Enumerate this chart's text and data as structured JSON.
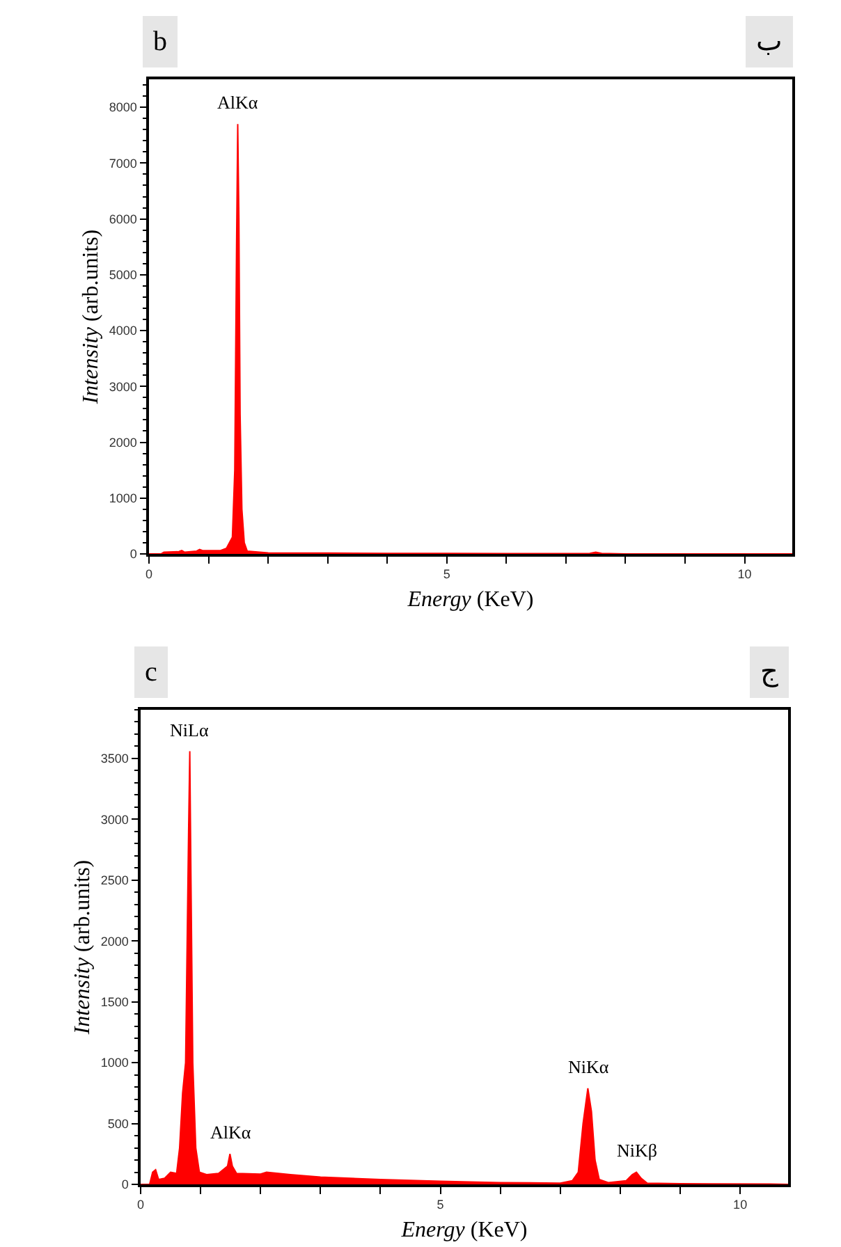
{
  "chart_data": [
    {
      "type": "area",
      "xlabel": "Energy (KeV)",
      "ylabel": "Intensity (arb.units)",
      "xlim": [
        0,
        10.8
      ],
      "ylim": [
        0,
        8500
      ],
      "xticks": [
        0,
        {
          "value": 1,
          "label": null
        },
        {
          "value": 2,
          "label": null
        },
        {
          "value": 3,
          "label": null
        },
        {
          "value": 4,
          "label": null
        },
        5,
        {
          "value": 6,
          "label": null
        },
        {
          "value": 7,
          "label": null
        },
        {
          "value": 8,
          "label": null
        },
        {
          "value": 9,
          "label": null
        },
        10
      ],
      "yticks": [
        0,
        1000,
        2000,
        3000,
        4000,
        5000,
        6000,
        7000,
        8000
      ],
      "annotations": [
        "b",
        "ب",
        {
          "text": "AlKα",
          "x": 1.49,
          "y": 7700
        }
      ],
      "series": [
        {
          "color": "#ff0000",
          "x": [
            0,
            0.2,
            0.25,
            0.5,
            0.55,
            0.6,
            0.8,
            0.85,
            0.9,
            1.2,
            1.3,
            1.4,
            1.44,
            1.47,
            1.49,
            1.51,
            1.53,
            1.56,
            1.6,
            1.65,
            2,
            3,
            4,
            5,
            6,
            7.4,
            7.5,
            7.6,
            8,
            10.8
          ],
          "values": [
            0,
            0,
            30,
            40,
            60,
            30,
            50,
            80,
            60,
            60,
            100,
            300,
            1500,
            5500,
            7700,
            6000,
            2500,
            800,
            200,
            50,
            20,
            15,
            10,
            10,
            5,
            10,
            30,
            10,
            0,
            0
          ]
        }
      ]
    },
    {
      "type": "area",
      "xlabel": "Energy (KeV)",
      "ylabel": "Intensity (arb.units)",
      "xlim": [
        0,
        10.8
      ],
      "ylim": [
        0,
        3900
      ],
      "xticks": [
        0,
        {
          "value": 1,
          "label": null
        },
        {
          "value": 2,
          "label": null
        },
        {
          "value": 3,
          "label": null
        },
        {
          "value": 4,
          "label": null
        },
        5,
        {
          "value": 6,
          "label": null
        },
        {
          "value": 7,
          "label": null
        },
        {
          "value": 8,
          "label": null
        },
        {
          "value": 9,
          "label": null
        },
        10
      ],
      "yticks": [
        0,
        500,
        1000,
        1500,
        2000,
        2500,
        3000,
        3500
      ],
      "annotations": [
        "c",
        "ج",
        {
          "text": "NiLα",
          "x": 0.82,
          "y": 3560
        },
        {
          "text": "AlKα",
          "x": 1.49,
          "y": 250
        },
        {
          "text": "NiKα",
          "x": 7.46,
          "y": 790
        },
        {
          "text": "NiKβ",
          "x": 8.27,
          "y": 100
        }
      ],
      "series": [
        {
          "color": "#ff0000",
          "x": [
            0,
            0.15,
            0.2,
            0.25,
            0.3,
            0.4,
            0.5,
            0.6,
            0.65,
            0.7,
            0.75,
            0.8,
            0.82,
            0.84,
            0.87,
            0.92,
            0.98,
            1.1,
            1.3,
            1.45,
            1.49,
            1.53,
            1.6,
            2,
            2.1,
            2.5,
            3,
            4,
            5,
            6,
            7,
            7.2,
            7.3,
            7.38,
            7.46,
            7.52,
            7.58,
            7.65,
            7.8,
            8.1,
            8.2,
            8.27,
            8.35,
            8.45,
            9,
            10.5,
            10.8
          ],
          "values": [
            0,
            0,
            100,
            120,
            40,
            50,
            100,
            90,
            300,
            750,
            1000,
            2900,
            3560,
            2500,
            1000,
            300,
            100,
            80,
            90,
            150,
            250,
            150,
            90,
            85,
            100,
            80,
            60,
            40,
            25,
            15,
            10,
            30,
            100,
            500,
            790,
            600,
            200,
            40,
            15,
            30,
            80,
            100,
            50,
            10,
            5,
            3,
            0
          ]
        }
      ]
    }
  ]
}
